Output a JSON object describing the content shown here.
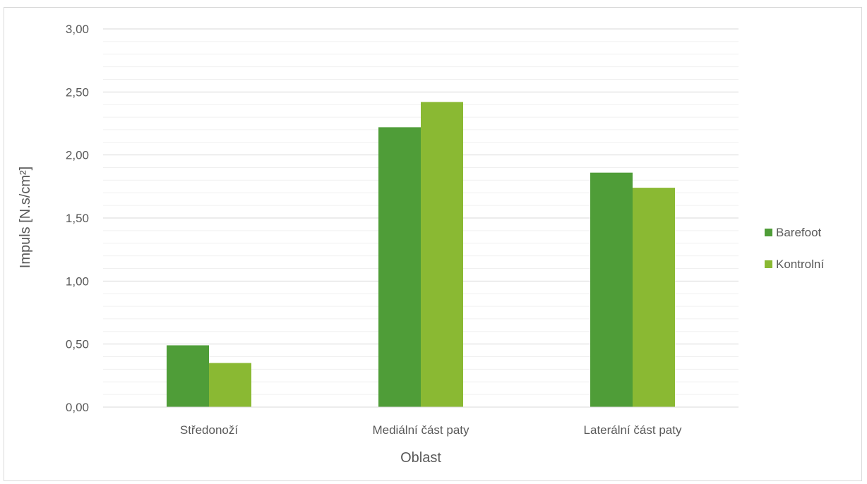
{
  "chart_data": {
    "type": "bar",
    "categories": [
      "Středonoží",
      "Mediální část paty",
      "Laterální část paty"
    ],
    "series": [
      {
        "name": "Barefoot",
        "values": [
          0.49,
          2.22,
          1.86
        ],
        "color": "#4f9d38"
      },
      {
        "name": "Kontrolní",
        "values": [
          0.35,
          2.42,
          1.74
        ],
        "color": "#8ab933"
      }
    ],
    "title": "",
    "xlabel": "Oblast",
    "ylabel": "Impuls [N.s/cm²]",
    "ylim": [
      0,
      3
    ],
    "y_major_step": 0.5,
    "y_minor_step": 0.1,
    "y_tick_labels": [
      "0,00",
      "0,50",
      "1,00",
      "1,50",
      "2,00",
      "2,50",
      "3,00"
    ],
    "grid": true,
    "legend_position": "right"
  }
}
